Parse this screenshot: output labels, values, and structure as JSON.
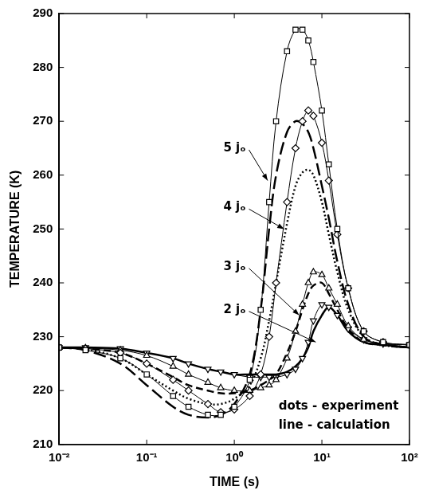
{
  "chart_data": {
    "type": "line",
    "x_label": "TIME (s)",
    "y_label": "TEMPERATURE (K)",
    "log": "x",
    "grid": false,
    "xlim": [
      0.01,
      100
    ],
    "xticks": [
      {
        "value": 0.01,
        "label": "10⁻²"
      },
      {
        "value": 0.1,
        "label": "10⁻¹"
      },
      {
        "value": 1,
        "label": "10⁰"
      },
      {
        "value": 10,
        "label": "10¹"
      },
      {
        "value": 100,
        "label": "10²"
      }
    ],
    "ylim": [
      210,
      290
    ],
    "yticks": [
      210,
      220,
      230,
      240,
      250,
      260,
      270,
      280,
      290
    ],
    "series": [
      {
        "color": "#000000",
        "marker": "square",
        "line_style": "solid",
        "x": [
          0.01,
          0.02,
          0.05,
          0.1,
          0.2,
          0.3,
          0.5,
          0.7,
          1,
          1.5,
          2,
          2.5,
          3,
          4,
          5,
          6,
          7,
          8,
          10,
          12,
          15,
          20,
          30,
          50,
          100
        ],
        "values": [
          228,
          227.5,
          226,
          223,
          219,
          217,
          215.5,
          215.5,
          217,
          222,
          235,
          255,
          270,
          283,
          287,
          287,
          285,
          281,
          272,
          262,
          250,
          239,
          231,
          229,
          228.5
        ]
      },
      {
        "color": "#000000",
        "marker": "diamond",
        "line_style": "solid",
        "x": [
          0.01,
          0.02,
          0.05,
          0.1,
          0.2,
          0.3,
          0.5,
          0.7,
          1,
          1.5,
          2,
          2.5,
          3,
          4,
          5,
          6,
          7,
          8,
          10,
          12,
          15,
          20,
          30,
          50,
          100
        ],
        "values": [
          228,
          227.8,
          227,
          225,
          222,
          220,
          217.5,
          216,
          216.5,
          219,
          223,
          230,
          240,
          255,
          265,
          270,
          272,
          271,
          266,
          259,
          249,
          239,
          231,
          229,
          228.5
        ]
      },
      {
        "color": "#000000",
        "marker": "triangle",
        "line_style": "solid",
        "x": [
          0.01,
          0.02,
          0.05,
          0.1,
          0.2,
          0.3,
          0.5,
          0.7,
          1,
          1.5,
          2,
          2.5,
          3,
          4,
          5,
          6,
          7,
          8,
          10,
          12,
          15,
          20,
          30,
          50,
          100
        ],
        "values": [
          228,
          227.9,
          227.5,
          226.5,
          224.5,
          223,
          221.5,
          220.5,
          220,
          220,
          220.5,
          221,
          222,
          226,
          231,
          236,
          240,
          242,
          241.5,
          239,
          236,
          232,
          229.5,
          228.7,
          228.5
        ]
      },
      {
        "color": "#000000",
        "marker": "triangle-down",
        "line_style": "solid",
        "x": [
          0.01,
          0.02,
          0.05,
          0.1,
          0.2,
          0.3,
          0.5,
          0.7,
          1,
          1.5,
          2,
          2.5,
          3,
          4,
          5,
          6,
          7,
          8,
          10,
          12,
          15,
          20,
          30,
          50,
          100
        ],
        "values": [
          228,
          228,
          227.8,
          227,
          226,
          225,
          224,
          223.5,
          223,
          222.5,
          222.5,
          222.5,
          222.5,
          223,
          224,
          226,
          229,
          233,
          236,
          235.5,
          234,
          231.5,
          229.5,
          228.7,
          228.5
        ]
      },
      {
        "color": "#000000",
        "line_style": "long-dashed",
        "x": [
          0.01,
          0.02,
          0.05,
          0.1,
          0.2,
          0.3,
          0.5,
          0.7,
          1,
          1.5,
          2,
          2.5,
          3,
          4,
          5,
          6,
          7,
          8,
          10,
          12,
          15,
          20,
          30,
          50,
          100
        ],
        "values": [
          228,
          227.5,
          225,
          221,
          217,
          215.5,
          215,
          215.5,
          217.5,
          223,
          235,
          250,
          260,
          268,
          270,
          269.5,
          268,
          265,
          258,
          252,
          244,
          236,
          230,
          228.5,
          228
        ]
      },
      {
        "color": "#000000",
        "line_style": "dotted",
        "x": [
          0.01,
          0.02,
          0.05,
          0.1,
          0.2,
          0.3,
          0.5,
          0.7,
          1,
          1.5,
          2,
          2.5,
          3,
          4,
          5,
          6,
          7,
          8,
          10,
          12,
          15,
          20,
          30,
          50,
          100
        ],
        "values": [
          228,
          227.7,
          226,
          223,
          220,
          218.5,
          217.5,
          217.5,
          218.5,
          221,
          226,
          233,
          240,
          251,
          258,
          260.5,
          261,
          260,
          255,
          249,
          242,
          235,
          230,
          228.5,
          228
        ]
      },
      {
        "color": "#000000",
        "line_style": "dashed",
        "x": [
          0.01,
          0.02,
          0.05,
          0.1,
          0.2,
          0.3,
          0.5,
          0.7,
          1,
          1.5,
          2,
          2.5,
          3,
          4,
          5,
          6,
          7,
          8,
          10,
          12,
          15,
          20,
          30,
          50,
          100
        ],
        "values": [
          228,
          227.8,
          227,
          225,
          222.5,
          221,
          220,
          219.5,
          219.5,
          220,
          221,
          222,
          223,
          227,
          231,
          235,
          238,
          239.5,
          240,
          238,
          235,
          231.5,
          229,
          228.5,
          228
        ]
      },
      {
        "color": "#000000",
        "line_style": "solid",
        "x": [
          0.01,
          0.02,
          0.05,
          0.1,
          0.2,
          0.3,
          0.5,
          0.7,
          1,
          1.5,
          2,
          2.5,
          3,
          4,
          5,
          6,
          7,
          8,
          10,
          12,
          15,
          20,
          30,
          50,
          100
        ],
        "values": [
          228,
          228,
          227.8,
          227,
          226,
          225,
          224,
          223.5,
          223,
          223,
          223,
          223,
          223,
          223.5,
          224.5,
          226,
          228,
          231,
          234,
          235.5,
          234,
          231,
          229,
          228.5,
          228
        ]
      }
    ],
    "annotations": [
      {
        "text": "5 jₒ",
        "x": 0.75,
        "y": 265,
        "arrow_x": 2.4,
        "arrow_y": 259
      },
      {
        "text": "4 jₒ",
        "x": 0.75,
        "y": 254,
        "arrow_x": 3.7,
        "arrow_y": 250
      },
      {
        "text": "3 jₒ",
        "x": 0.75,
        "y": 243,
        "arrow_x": 5.5,
        "arrow_y": 234
      },
      {
        "text": "2 jₒ",
        "x": 0.75,
        "y": 235,
        "arrow_x": 8.5,
        "arrow_y": 229
      },
      {
        "text": "dots - experiment",
        "x": 3.2,
        "y": 217
      },
      {
        "text": "line - calculation",
        "x": 3.2,
        "y": 213.5
      }
    ]
  }
}
